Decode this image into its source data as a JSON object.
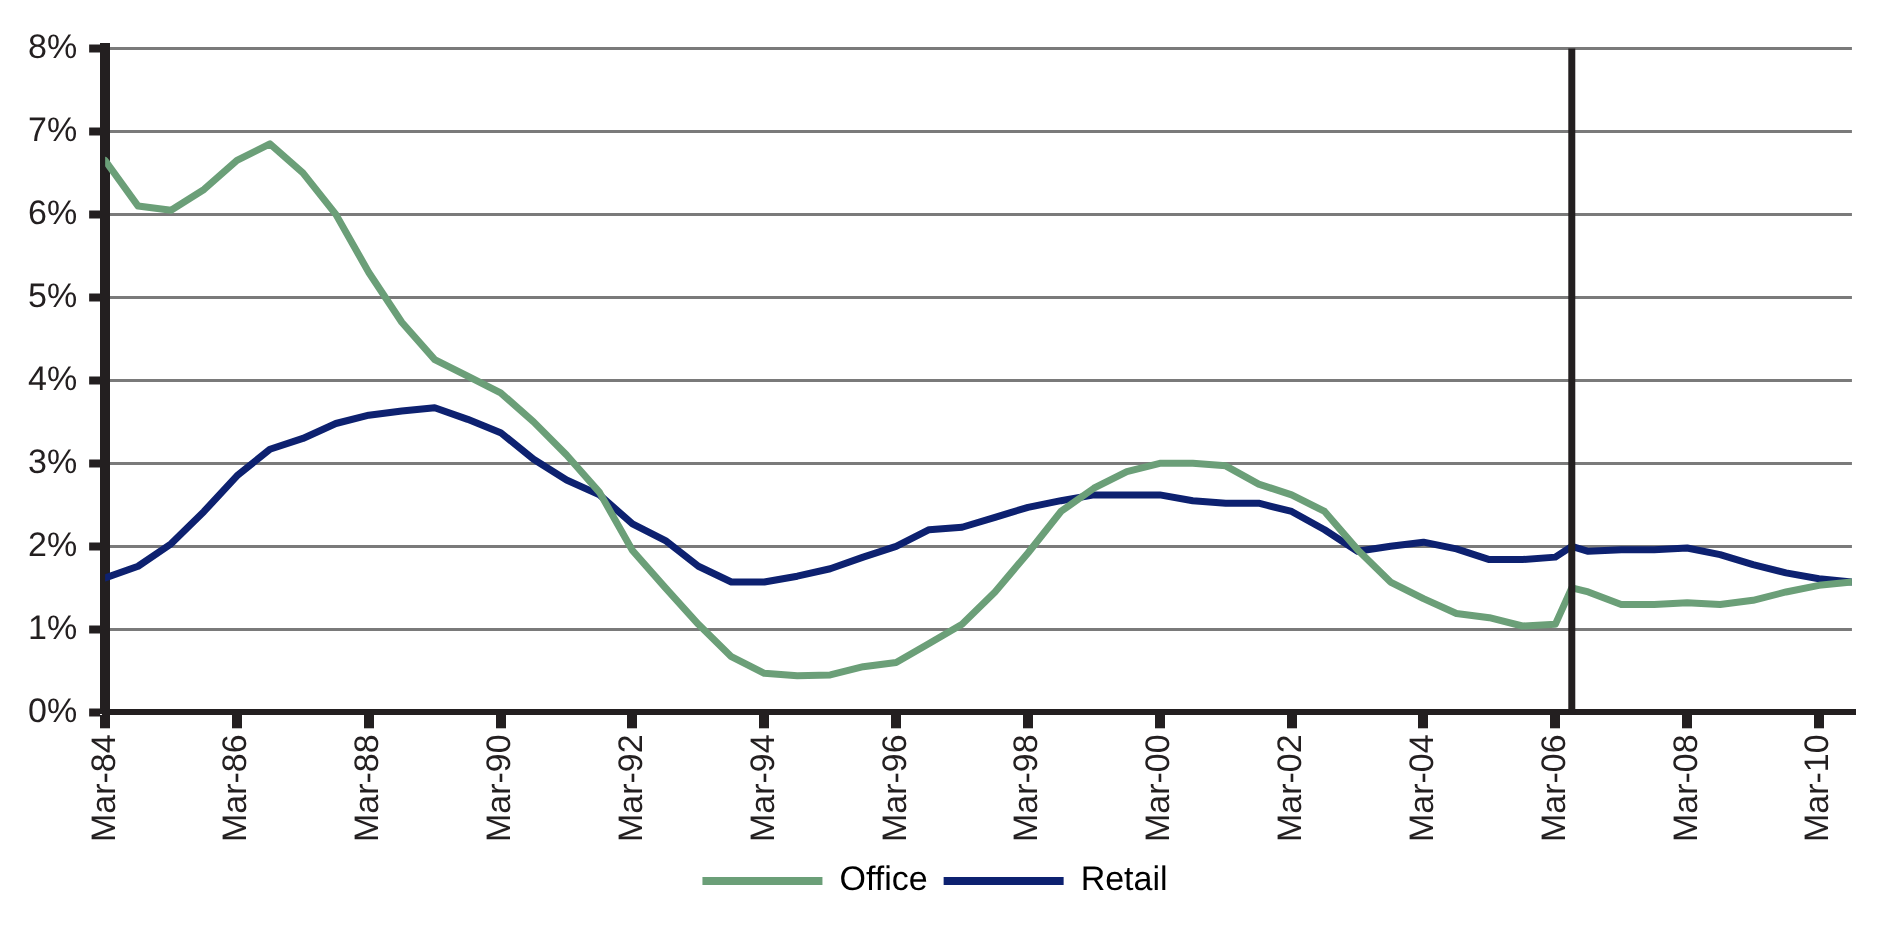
{
  "chart_data": {
    "type": "line",
    "x": [
      "1984-03",
      "1984-09",
      "1985-03",
      "1985-09",
      "1986-03",
      "1986-09",
      "1987-03",
      "1987-09",
      "1988-03",
      "1988-09",
      "1989-03",
      "1989-09",
      "1990-03",
      "1990-09",
      "1991-03",
      "1991-09",
      "1992-03",
      "1992-09",
      "1993-03",
      "1993-09",
      "1994-03",
      "1994-09",
      "1995-03",
      "1995-09",
      "1996-03",
      "1996-09",
      "1997-03",
      "1997-09",
      "1998-03",
      "1998-09",
      "1999-03",
      "1999-09",
      "2000-03",
      "2000-09",
      "2001-03",
      "2001-09",
      "2002-03",
      "2002-09",
      "2003-03",
      "2003-09",
      "2004-03",
      "2004-09",
      "2005-03",
      "2005-09",
      "2006-03",
      "2006-06",
      "2006-09",
      "2007-03",
      "2007-09",
      "2008-03",
      "2008-09",
      "2009-03",
      "2009-09",
      "2010-03",
      "2010-09"
    ],
    "series": [
      {
        "name": "Office",
        "color": "#6b9f78",
        "values": [
          6.65,
          6.1,
          6.05,
          6.3,
          6.65,
          6.85,
          6.5,
          6.0,
          5.3,
          4.7,
          4.25,
          4.05,
          3.85,
          3.5,
          3.1,
          2.65,
          1.95,
          1.5,
          1.06,
          0.67,
          0.47,
          0.44,
          0.45,
          0.55,
          0.6,
          0.83,
          1.06,
          1.45,
          1.92,
          2.42,
          2.7,
          2.9,
          3.0,
          3.0,
          2.97,
          2.75,
          2.62,
          2.42,
          1.96,
          1.57,
          1.37,
          1.19,
          1.14,
          1.04,
          1.06,
          1.5,
          1.45,
          1.3,
          1.3,
          1.32,
          1.3,
          1.35,
          1.45,
          1.53,
          1.57
        ]
      },
      {
        "name": "Retail",
        "color": "#0d2170",
        "values": [
          1.62,
          1.76,
          2.03,
          2.42,
          2.85,
          3.17,
          3.3,
          3.48,
          3.58,
          3.63,
          3.67,
          3.53,
          3.37,
          3.05,
          2.8,
          2.62,
          2.27,
          2.07,
          1.76,
          1.57,
          1.57,
          1.64,
          1.73,
          1.87,
          2.0,
          2.2,
          2.23,
          2.35,
          2.47,
          2.55,
          2.62,
          2.62,
          2.62,
          2.55,
          2.52,
          2.52,
          2.42,
          2.2,
          1.94,
          2.0,
          2.05,
          1.97,
          1.84,
          1.84,
          1.87,
          2.0,
          1.94,
          1.96,
          1.96,
          1.98,
          1.9,
          1.78,
          1.68,
          1.61,
          1.57
        ]
      }
    ],
    "xlim": [
      "1984-03",
      "2010-09"
    ],
    "xticks": [
      {
        "value": "1984-03",
        "label": "Mar-84"
      },
      {
        "value": "1986-03",
        "label": "Mar-86"
      },
      {
        "value": "1988-03",
        "label": "Mar-88"
      },
      {
        "value": "1990-03",
        "label": "Mar-90"
      },
      {
        "value": "1992-03",
        "label": "Mar-92"
      },
      {
        "value": "1994-03",
        "label": "Mar-94"
      },
      {
        "value": "1996-03",
        "label": "Mar-96"
      },
      {
        "value": "1998-03",
        "label": "Mar-98"
      },
      {
        "value": "2000-03",
        "label": "Mar-00"
      },
      {
        "value": "2002-03",
        "label": "Mar-02"
      },
      {
        "value": "2004-03",
        "label": "Mar-04"
      },
      {
        "value": "2006-03",
        "label": "Mar-06"
      },
      {
        "value": "2008-03",
        "label": "Mar-08"
      },
      {
        "value": "2010-03",
        "label": "Mar-10"
      }
    ],
    "ylim": [
      0,
      8
    ],
    "yticks": [
      {
        "value": 0,
        "label": "0%"
      },
      {
        "value": 1,
        "label": "1%"
      },
      {
        "value": 2,
        "label": "2%"
      },
      {
        "value": 3,
        "label": "3%"
      },
      {
        "value": 4,
        "label": "4%"
      },
      {
        "value": 5,
        "label": "5%"
      },
      {
        "value": 6,
        "label": "6%"
      },
      {
        "value": 7,
        "label": "7%"
      },
      {
        "value": 8,
        "label": "8%"
      }
    ],
    "ref_lines": [
      {
        "axis": "x",
        "value": "2006-06",
        "color": "#231f20"
      }
    ],
    "grid": "y",
    "legend": "bottom",
    "marker": "none",
    "line_style": "solid"
  }
}
